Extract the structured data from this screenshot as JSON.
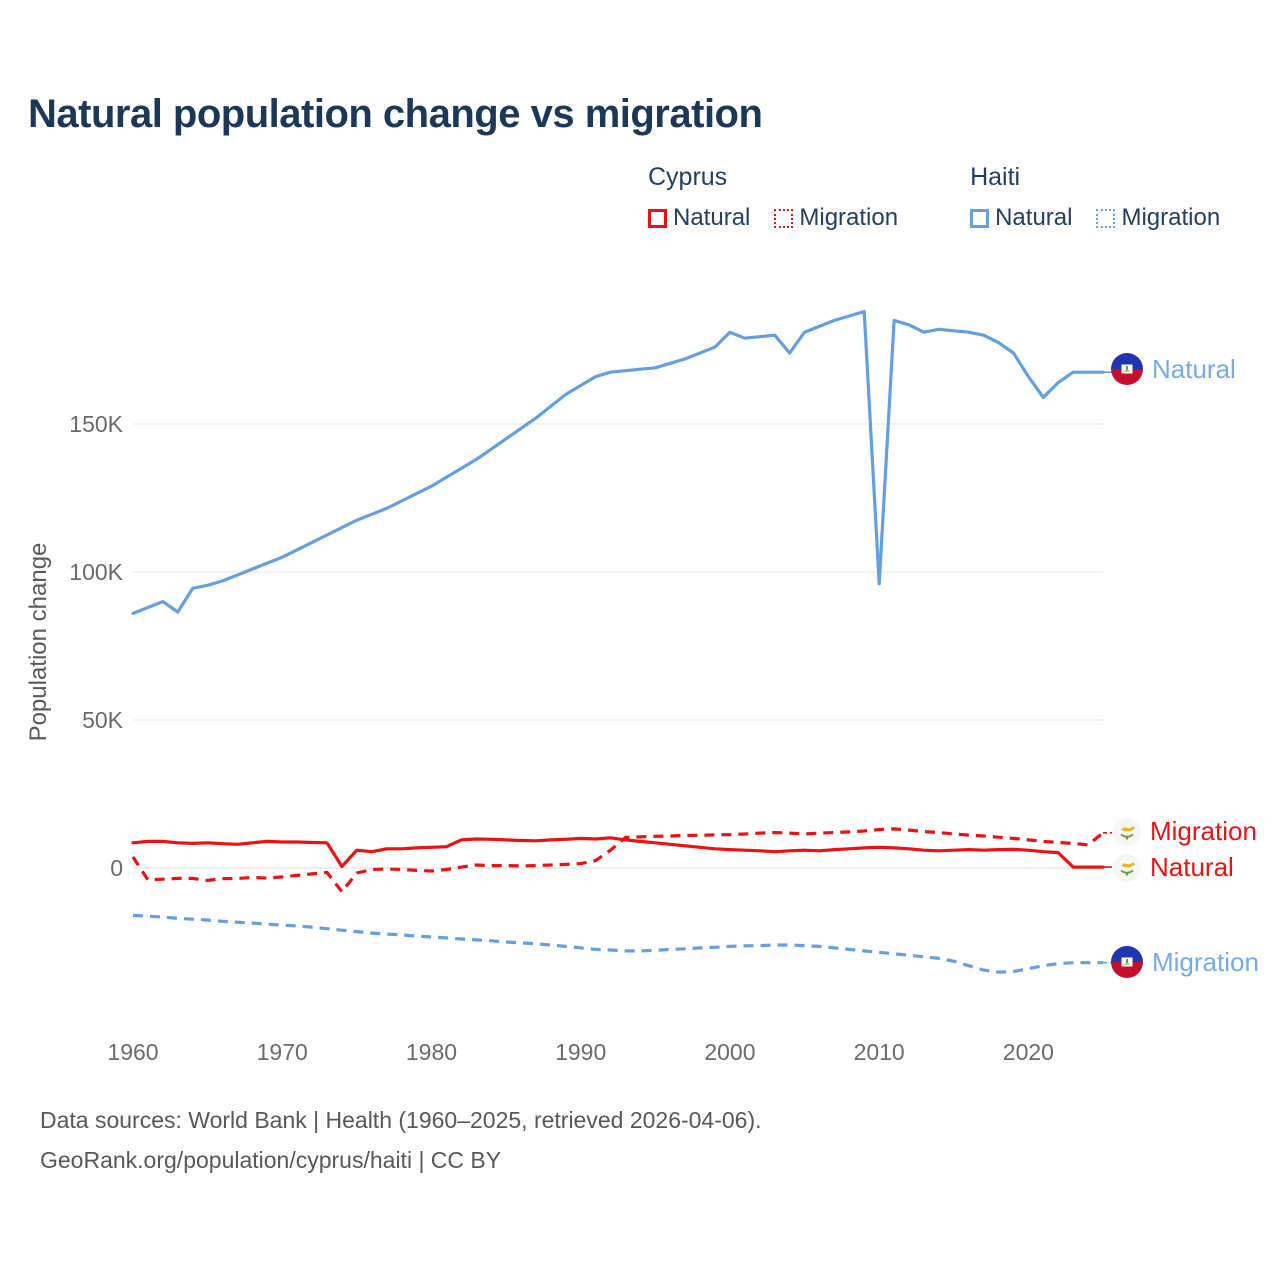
{
  "title": "Natural population change vs migration",
  "colors": {
    "cyprus": "#ee1111",
    "haiti": "#64a0e0",
    "title_text": "#1b3859",
    "axis_text": "#6b6b6b",
    "grid": "#e8e8e8"
  },
  "legend": {
    "groups": [
      {
        "country": "Cyprus",
        "items": [
          {
            "label": "Natural",
            "style": "solid"
          },
          {
            "label": "Migration",
            "style": "dashed"
          }
        ]
      },
      {
        "country": "Haiti",
        "items": [
          {
            "label": "Natural",
            "style": "solid"
          },
          {
            "label": "Migration",
            "style": "dashed"
          }
        ]
      }
    ]
  },
  "y_axis": {
    "title": "Population change"
  },
  "end_labels": [
    {
      "country": "Haiti",
      "label": "Natural",
      "color": "#64a0e0"
    },
    {
      "country": "Cyprus",
      "label": "Migration",
      "color": "#ee1111"
    },
    {
      "country": "Cyprus",
      "label": "Natural",
      "color": "#ee1111"
    },
    {
      "country": "Haiti",
      "label": "Migration",
      "color": "#64a0e0"
    }
  ],
  "footer": {
    "line1": "Data sources: World Bank | Health (1960–2025, retrieved 2026-04-06).",
    "line2": "GeoRank.org/population/cyprus/haiti | CC BY"
  },
  "chart_data": {
    "type": "line",
    "title": "Natural population change vs migration",
    "xlabel": "",
    "ylabel": "Population change",
    "x_start": 1960,
    "x_end": 2025,
    "y_unit": "thousands",
    "ylim_k": [
      -45,
      195
    ],
    "grid": true,
    "legend_position": "top",
    "y_ticks": [
      {
        "label": "0",
        "value": 0
      },
      {
        "label": "50K",
        "value": 50
      },
      {
        "label": "100K",
        "value": 100
      },
      {
        "label": "150K",
        "value": 150
      }
    ],
    "x_ticks": [
      {
        "label": "1960",
        "year": 1960
      },
      {
        "label": "1970",
        "year": 1970
      },
      {
        "label": "1980",
        "year": 1980
      },
      {
        "label": "1990",
        "year": 1990
      },
      {
        "label": "2000",
        "year": 2000
      },
      {
        "label": "2010",
        "year": 2010
      },
      {
        "label": "2020",
        "year": 2020
      }
    ],
    "series": [
      {
        "id": "haiti-natural",
        "country": "Haiti",
        "name": "Natural",
        "color": "#64a0e0",
        "style": "solid",
        "values": [
          86,
          88,
          90,
          86.5,
          94.5,
          95.5,
          97,
          99,
          101,
          103,
          105,
          107.5,
          110,
          112.5,
          115,
          117.5,
          119.5,
          121.5,
          124,
          126.5,
          129,
          132,
          135,
          138,
          141.5,
          145,
          148.5,
          152,
          156,
          160,
          163,
          166,
          167.5,
          168,
          168.5,
          169,
          170.5,
          172,
          174,
          176,
          181,
          179,
          179.5,
          180,
          174,
          181,
          183,
          185,
          186.5,
          188,
          96,
          185,
          183.5,
          181,
          182,
          181.5,
          181,
          180,
          177.5,
          174,
          166,
          159,
          164,
          167.5,
          167.5,
          167.5
        ]
      },
      {
        "id": "haiti-migration",
        "country": "Haiti",
        "name": "Migration",
        "color": "#64a0e0",
        "style": "dashed",
        "values": [
          -16,
          -16.3,
          -16.6,
          -17,
          -17.3,
          -17.6,
          -18,
          -18.3,
          -18.6,
          -19,
          -19.3,
          -19.6,
          -20,
          -20.5,
          -21,
          -21.5,
          -22,
          -22.3,
          -22.6,
          -23,
          -23.3,
          -23.6,
          -24,
          -24.3,
          -24.6,
          -25,
          -25.3,
          -25.6,
          -26,
          -26.5,
          -27,
          -27.5,
          -27.7,
          -28,
          -28,
          -27.8,
          -27.5,
          -27.3,
          -27,
          -26.8,
          -26.5,
          -26.3,
          -26.2,
          -26,
          -26,
          -26.2,
          -26.5,
          -27,
          -27.5,
          -28,
          -28.5,
          -29,
          -29.5,
          -30,
          -30.5,
          -31.5,
          -33,
          -34.5,
          -35.2,
          -35,
          -34,
          -33,
          -32.3,
          -32,
          -32,
          -32
        ]
      },
      {
        "id": "cyprus-natural",
        "country": "Cyprus",
        "name": "Natural",
        "color": "#ee1111",
        "style": "solid",
        "values": [
          8.5,
          9,
          9,
          8.5,
          8.3,
          8.5,
          8.2,
          8,
          8.5,
          9,
          8.8,
          8.8,
          8.6,
          8.5,
          0.5,
          6,
          5.5,
          6.5,
          6.5,
          6.8,
          7,
          7.2,
          9.5,
          9.8,
          9.7,
          9.5,
          9.3,
          9.2,
          9.5,
          9.7,
          10,
          9.8,
          10.2,
          9.5,
          9,
          8.5,
          8,
          7.5,
          7,
          6.5,
          6.2,
          6,
          5.8,
          5.5,
          5.8,
          6,
          5.8,
          6.2,
          6.5,
          6.8,
          7,
          6.8,
          6.5,
          6,
          5.8,
          6,
          6.2,
          6,
          6.2,
          6.3,
          6,
          5.5,
          5.2,
          0.3,
          0.3,
          0.3
        ]
      },
      {
        "id": "cyprus-migration",
        "country": "Cyprus",
        "name": "Migration",
        "color": "#ee1111",
        "style": "dashed",
        "values": [
          3.7,
          -4,
          -3.8,
          -3.5,
          -3.5,
          -4.2,
          -3.6,
          -3.5,
          -3.2,
          -3.4,
          -3,
          -2.5,
          -2,
          -1.5,
          -8,
          -1.7,
          -0.5,
          -0.3,
          -0.5,
          -0.8,
          -1,
          -0.5,
          0.3,
          1,
          0.8,
          0.8,
          0.7,
          0.8,
          1,
          1.2,
          1.5,
          2.5,
          6,
          10.3,
          10.5,
          10.7,
          10.8,
          11,
          11,
          11.2,
          11.3,
          11.5,
          11.8,
          12,
          11.8,
          11.5,
          11.8,
          12,
          12.2,
          12.5,
          13,
          13.2,
          12.8,
          12.3,
          12,
          11.5,
          11.1,
          10.8,
          10.4,
          10,
          9.5,
          9,
          8.6,
          8.3,
          7.8,
          11.9
        ]
      }
    ]
  }
}
